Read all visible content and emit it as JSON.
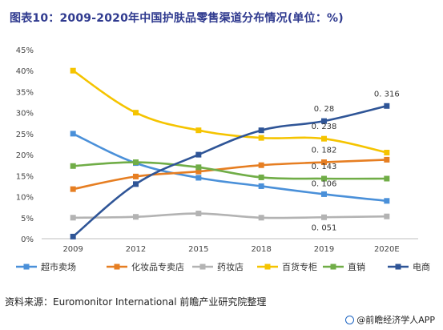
{
  "title": "图表10：2009-2020年中国护肤品零售渠道分布情况(单位：%)",
  "source": "资料来源：Euromonitor International 前瞻产业研究院整理",
  "brand": "@前瞻经济学人APP",
  "colors": {
    "title": "#2f3a8f",
    "axis": "#bfbfbf",
    "grid": "#e6e6e6"
  },
  "chart_data": {
    "type": "line",
    "title": "图表10：2009-2020年中国护肤品零售渠道分布情况(单位：%)",
    "categories": [
      "2009",
      "2012",
      "2015",
      "2018",
      "2019",
      "2020E"
    ],
    "ylim": [
      0,
      45
    ],
    "y_ticks": [
      "0%",
      "5%",
      "10%",
      "15%",
      "20%",
      "25%",
      "30%",
      "35%",
      "40%",
      "45%"
    ],
    "grid": false,
    "legend_position": "bottom",
    "series": [
      {
        "name": "超市卖场",
        "color": "#4a90d9",
        "marker": "square",
        "values": [
          25.0,
          18.0,
          14.5,
          12.5,
          10.6,
          9.0
        ]
      },
      {
        "name": "化妆品专卖店",
        "color": "#e67e22",
        "marker": "square",
        "values": [
          11.8,
          14.8,
          16.0,
          17.5,
          18.2,
          18.8
        ]
      },
      {
        "name": "药妆店",
        "color": "#b3b3b3",
        "marker": "square",
        "values": [
          5.0,
          5.2,
          6.0,
          5.0,
          5.1,
          5.3
        ]
      },
      {
        "name": "百货专柜",
        "color": "#f5c400",
        "marker": "square",
        "values": [
          40.0,
          30.0,
          25.8,
          24.0,
          23.8,
          20.5
        ]
      },
      {
        "name": "直销",
        "color": "#70ad47",
        "marker": "square",
        "values": [
          17.3,
          18.2,
          17.0,
          14.6,
          14.3,
          14.3
        ]
      },
      {
        "name": "电商",
        "color": "#2f5597",
        "marker": "square",
        "values": [
          0.5,
          13.0,
          20.0,
          25.8,
          28.0,
          31.6
        ]
      }
    ],
    "annotations": [
      "0. 316",
      "0. 28",
      "0. 238",
      "0. 182",
      "0. 143",
      "0. 106",
      "0. 051"
    ]
  }
}
